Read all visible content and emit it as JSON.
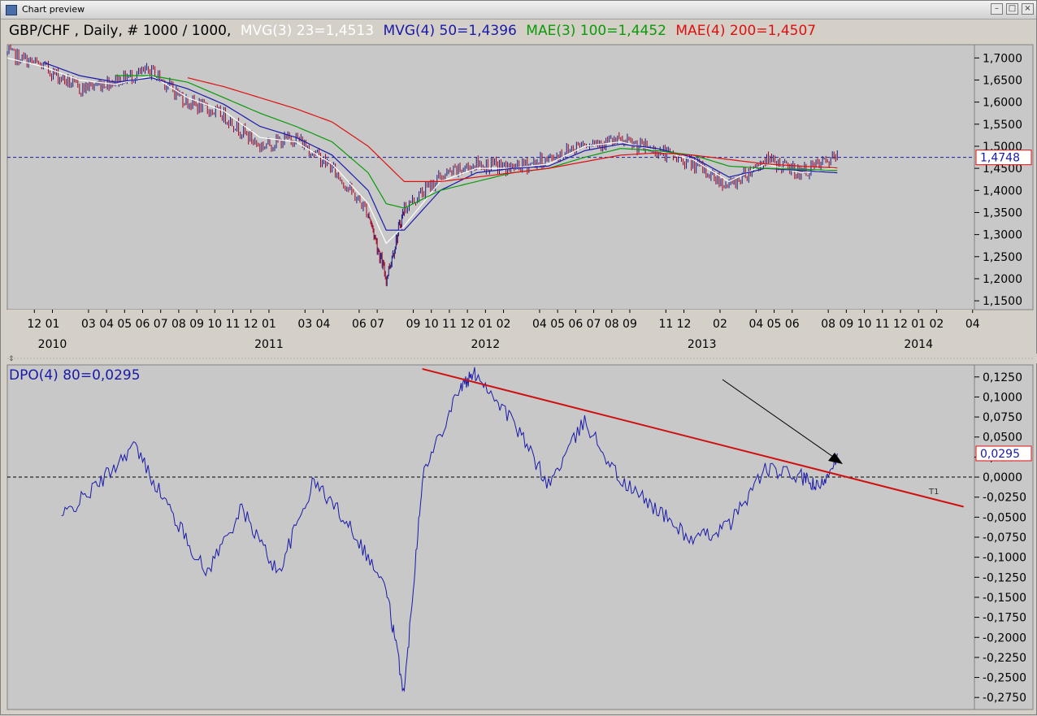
{
  "window": {
    "title": "Chart preview",
    "icon": "chart-window-icon",
    "buttons": [
      "minimize-icon",
      "maximize-icon",
      "close-icon"
    ]
  },
  "price_panel": {
    "header": {
      "symbol": "GBP/CHF , Daily, # 1000 / 1000,",
      "ind1": "MVG(3) 23=1,4513",
      "ind2": "MVG(4) 50=1,4396",
      "ind3": "MAE(3) 100=1,4452",
      "ind4": "MAE(4) 200=1,4507"
    },
    "current_price_label": "1,4748",
    "y_ticks": [
      "1,7000",
      "1,6500",
      "1,6000",
      "1,5500",
      "1,5000",
      "1,4500",
      "1,4000",
      "1,3500",
      "1,3000",
      "1,2500",
      "1,2000",
      "1,1500"
    ],
    "month_ticks": [
      "12",
      "01",
      "03",
      "04",
      "05",
      "06",
      "07",
      "08",
      "09",
      "10",
      "11",
      "12",
      "01",
      "03",
      "04",
      "06",
      "07",
      "09",
      "10",
      "11",
      "12",
      "01",
      "02",
      "04",
      "05",
      "06",
      "07",
      "08",
      "09",
      "11",
      "12",
      "02",
      "04",
      "05",
      "06",
      "08",
      "09",
      "10",
      "11",
      "12",
      "01",
      "02",
      "04"
    ],
    "year_ticks": [
      "2010",
      "2011",
      "2012",
      "2013",
      "2014"
    ]
  },
  "dpo_panel": {
    "header": "DPO(4) 80=0,0295",
    "current_value_label": "0,0295",
    "y_ticks": [
      "0,1250",
      "0,1000",
      "0,0750",
      "0,0500",
      "0,0250",
      "0,0000",
      "-0,0250",
      "-0,0500",
      "-0,0750",
      "-0,1000",
      "-0,1250",
      "-0,1500",
      "-0,1750",
      "-0,2000",
      "-0,2250",
      "-0,2500",
      "-0,2750"
    ],
    "trendline_label": "T1"
  },
  "colors": {
    "background": "#c8c8c8",
    "mvg3": "#ffffff",
    "mvg4": "#1a1aaa",
    "mae3": "#0a9a0a",
    "mae4": "#e01010",
    "dpo": "#1a1aaa",
    "trendline": "#d01010",
    "candle_up": "#1a1a80",
    "candle_down": "#a00020"
  },
  "chart_data": [
    {
      "type": "line",
      "title": "GBP/CHF , Daily, # 1000 / 1000,",
      "x": [
        "2009-11",
        "2010-01",
        "2010-03",
        "2010-05",
        "2010-07",
        "2010-09",
        "2010-11",
        "2011-01",
        "2011-03",
        "2011-05",
        "2011-07",
        "2011-08",
        "2011-09",
        "2011-11",
        "2012-01",
        "2012-03",
        "2012-05",
        "2012-07",
        "2012-09",
        "2012-11",
        "2013-01",
        "2013-03",
        "2013-05",
        "2013-07",
        "2013-09"
      ],
      "series": [
        {
          "name": "Price",
          "values": [
            1.71,
            1.68,
            1.63,
            1.65,
            1.67,
            1.6,
            1.57,
            1.5,
            1.52,
            1.45,
            1.35,
            1.2,
            1.36,
            1.43,
            1.46,
            1.45,
            1.47,
            1.51,
            1.51,
            1.49,
            1.46,
            1.41,
            1.47,
            1.44,
            1.475
          ]
        },
        {
          "name": "MVG(3) 23",
          "values": [
            1.7,
            1.68,
            1.65,
            1.64,
            1.66,
            1.61,
            1.58,
            1.52,
            1.51,
            1.46,
            1.37,
            1.28,
            1.32,
            1.42,
            1.45,
            1.45,
            1.46,
            1.5,
            1.51,
            1.49,
            1.47,
            1.42,
            1.46,
            1.44,
            1.451
          ]
        },
        {
          "name": "MVG(4) 50",
          "values": [
            null,
            1.69,
            1.66,
            1.645,
            1.655,
            1.63,
            1.595,
            1.545,
            1.52,
            1.48,
            1.4,
            1.31,
            1.31,
            1.4,
            1.44,
            1.45,
            1.455,
            1.49,
            1.505,
            1.495,
            1.475,
            1.43,
            1.45,
            1.445,
            1.44
          ]
        },
        {
          "name": "MAE(3) 100",
          "values": [
            null,
            null,
            null,
            1.66,
            1.66,
            1.645,
            1.61,
            1.575,
            1.545,
            1.51,
            1.44,
            1.37,
            1.36,
            1.4,
            1.42,
            1.44,
            1.45,
            1.475,
            1.495,
            1.49,
            1.48,
            1.455,
            1.45,
            1.448,
            1.445
          ]
        },
        {
          "name": "MAE(4) 200",
          "values": [
            null,
            null,
            null,
            null,
            null,
            1.655,
            1.635,
            1.61,
            1.585,
            1.555,
            1.5,
            1.46,
            1.42,
            1.42,
            1.43,
            1.44,
            1.45,
            1.465,
            1.48,
            1.485,
            1.48,
            1.47,
            1.46,
            1.455,
            1.451
          ]
        }
      ],
      "reference_lines": [
        {
          "y": 1.4748,
          "style": "dashed"
        }
      ],
      "ylim": [
        1.13,
        1.73
      ],
      "legend": "top-left"
    },
    {
      "type": "line",
      "title": "DPO(4) 80=0,0295",
      "x": [
        "2010-02",
        "2010-04",
        "2010-06",
        "2010-08",
        "2010-10",
        "2010-12",
        "2011-02",
        "2011-04",
        "2011-06",
        "2011-08",
        "2011-09",
        "2011-10",
        "2011-12",
        "2012-01",
        "2012-03",
        "2012-05",
        "2012-07",
        "2012-09",
        "2012-11",
        "2013-01",
        "2013-03",
        "2013-05",
        "2013-07",
        "2013-08",
        "2013-09"
      ],
      "series": [
        {
          "name": "DPO(4) 80",
          "values": [
            -0.05,
            -0.01,
            0.04,
            -0.04,
            -0.12,
            -0.04,
            -0.12,
            -0.005,
            -0.06,
            -0.14,
            -0.27,
            0.0,
            0.11,
            0.13,
            0.07,
            -0.01,
            0.07,
            -0.005,
            -0.04,
            -0.08,
            -0.06,
            0.01,
            0.0,
            -0.015,
            0.0295
          ]
        }
      ],
      "reference_lines": [
        {
          "y": 0,
          "style": "dashed"
        }
      ],
      "trendline": {
        "label": "T1",
        "from": [
          "2011-10",
          0.135
        ],
        "to": [
          "2014-04",
          -0.037
        ]
      },
      "ylim": [
        -0.29,
        0.14
      ],
      "legend": "top-left"
    }
  ]
}
